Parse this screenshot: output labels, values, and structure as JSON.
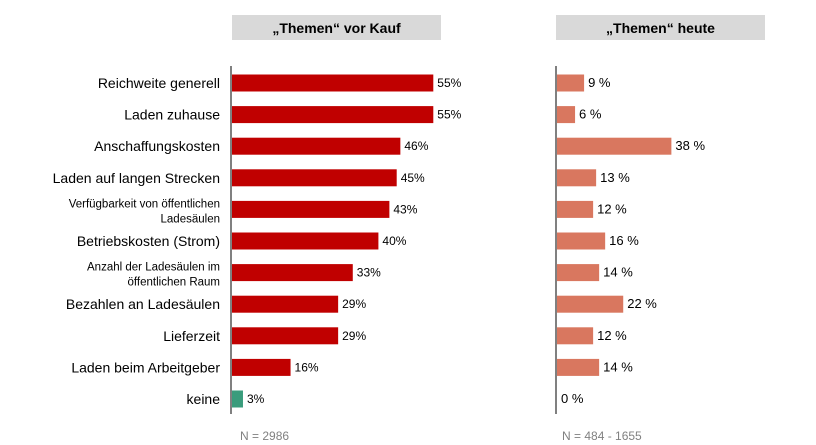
{
  "chart_data": [
    {
      "type": "bar",
      "orientation": "horizontal",
      "title": "„Themen“ vor Kauf",
      "categories": [
        "Reichweite generell",
        "Laden zuhause",
        "Anschaffungskosten",
        "Laden auf langen Strecken",
        "Verfügbarkeit von öffentlichen Ladesäulen",
        "Betriebskosten (Strom)",
        "Anzahl der Ladesäulen im öffentlichen Raum",
        "Bezahlen an Ladesäulen",
        "Lieferzeit",
        "Laden beim Arbeitgeber",
        "keine"
      ],
      "category_lines": [
        [
          "Reichweite generell"
        ],
        [
          "Laden zuhause"
        ],
        [
          "Anschaffungskosten"
        ],
        [
          "Laden auf langen Strecken"
        ],
        [
          "Verfügbarkeit von öffentlichen",
          "Ladesäulen"
        ],
        [
          "Betriebskosten (Strom)"
        ],
        [
          "Anzahl der Ladesäulen im",
          "öffentlichen Raum"
        ],
        [
          "Bezahlen an Ladesäulen"
        ],
        [
          "Lieferzeit"
        ],
        [
          "Laden beim Arbeitgeber"
        ],
        [
          "keine"
        ]
      ],
      "values": [
        55,
        55,
        46,
        45,
        43,
        40,
        33,
        29,
        29,
        16,
        3
      ],
      "value_labels": [
        "55%",
        "55%",
        "46%",
        "45%",
        "43%",
        "40%",
        "33%",
        "29%",
        "29%",
        "16%",
        "3%"
      ],
      "bar_colors": [
        "#c00000",
        "#c00000",
        "#c00000",
        "#c00000",
        "#c00000",
        "#c00000",
        "#c00000",
        "#c00000",
        "#c00000",
        "#c00000",
        "#3a9c7c"
      ],
      "unit": "%",
      "xlim": [
        0,
        100
      ],
      "footnote": "N = 2986"
    },
    {
      "type": "bar",
      "orientation": "horizontal",
      "title": "„Themen“ heute",
      "values": [
        9,
        6,
        38,
        13,
        12,
        16,
        14,
        22,
        12,
        14,
        0
      ],
      "value_labels": [
        "9 %",
        "6 %",
        "38 %",
        "13 %",
        "12 %",
        "16 %",
        "14 %",
        "22 %",
        "12 %",
        "14 %",
        "0 %"
      ],
      "bar_color": "#d9775f",
      "unit": "%",
      "xlim": [
        0,
        100
      ],
      "footnote": "N = 484 - 1655"
    }
  ]
}
